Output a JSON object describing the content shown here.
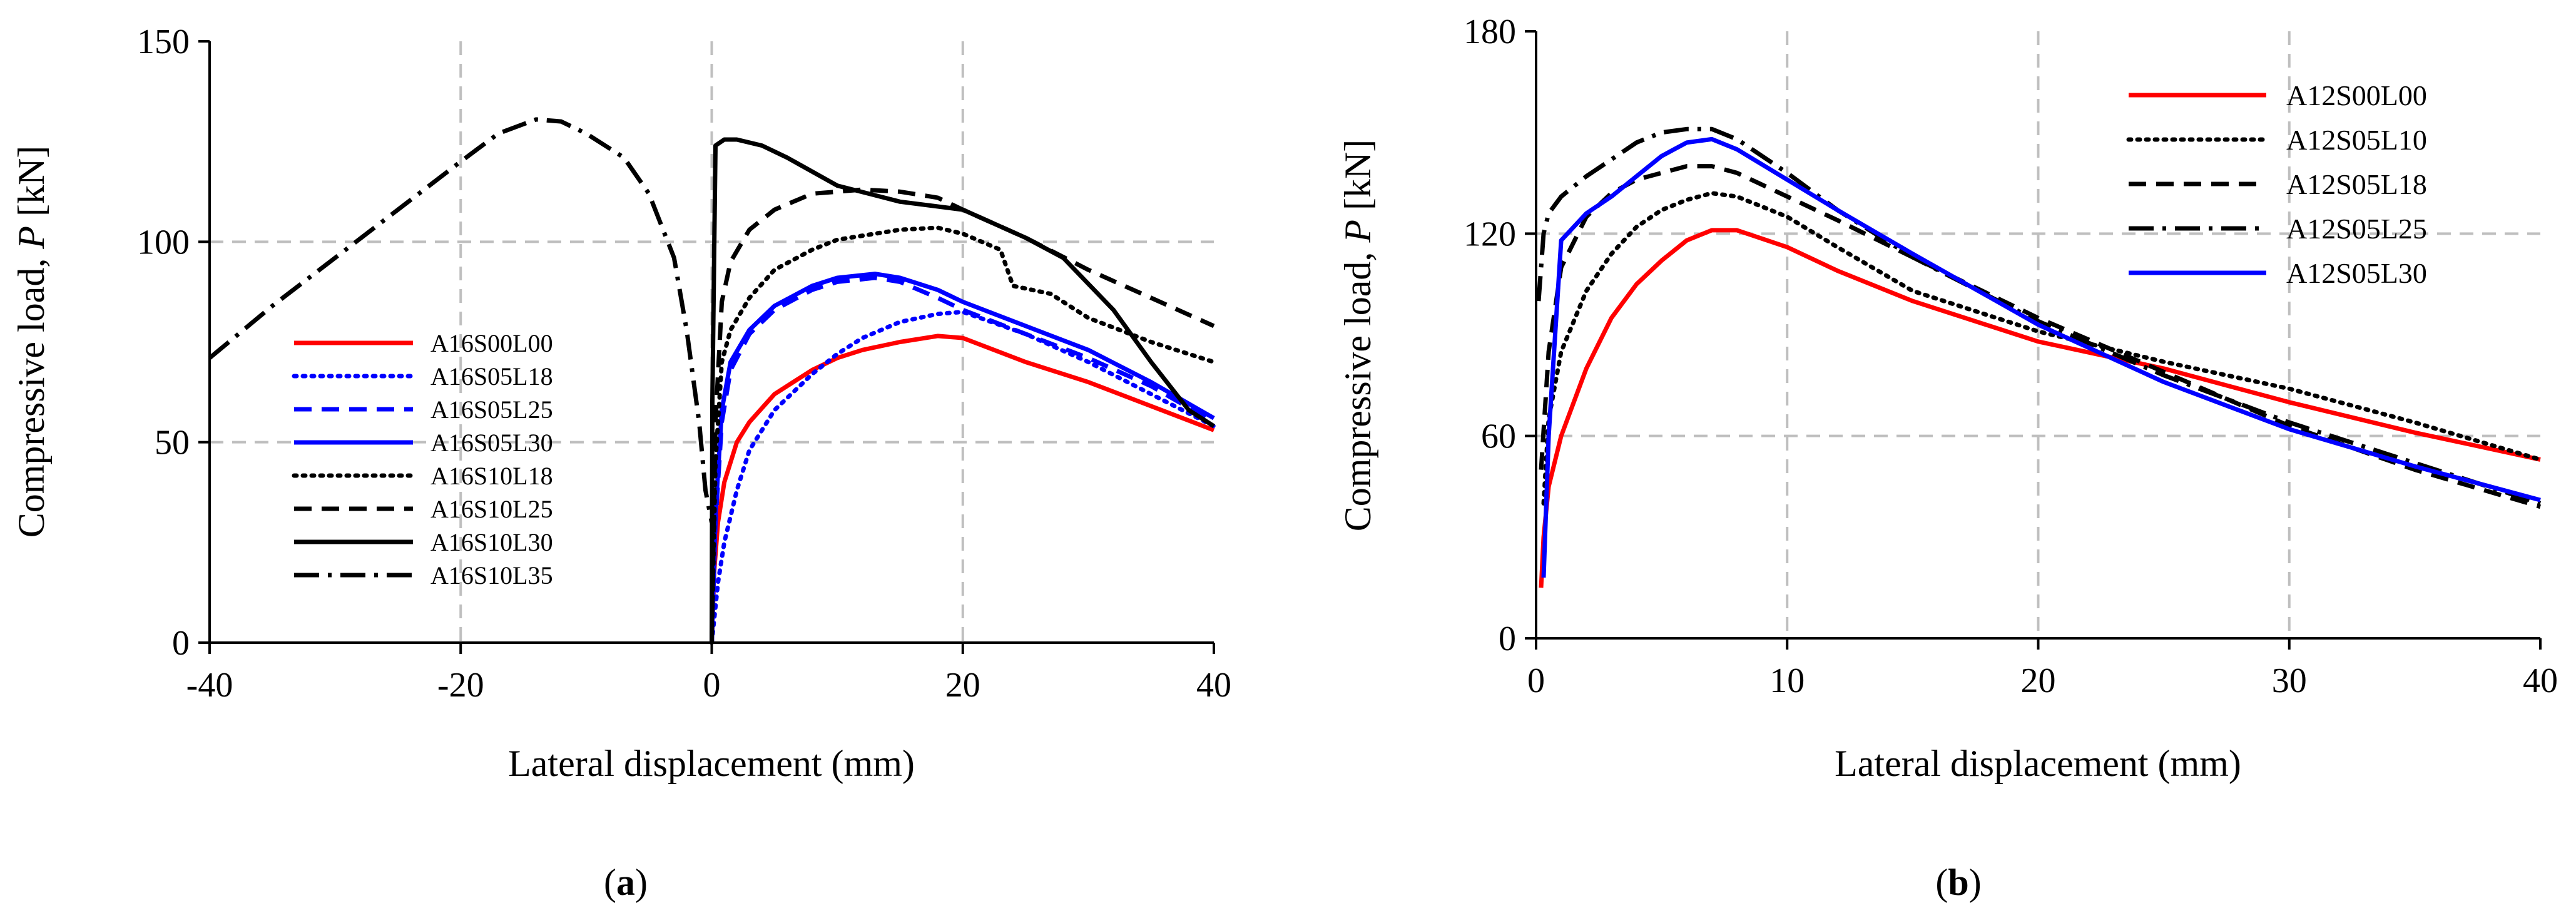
{
  "chart_data": [
    {
      "type": "line",
      "panel_label_prefix": "(",
      "panel_label_letter": "a",
      "panel_label_suffix": ")",
      "xlabel": "Lateral displacement (mm)",
      "ylabel_prefix": "Compressive load, ",
      "ylabel_symbol": "P",
      "ylabel_suffix": " [kN]",
      "xlim": [
        -40,
        40
      ],
      "ylim": [
        0,
        150
      ],
      "xticks": [
        -40,
        -20,
        0,
        20,
        40
      ],
      "yticks": [
        0,
        50,
        100,
        150
      ],
      "xtick_labels": [
        "-40",
        "-20",
        "0",
        "20",
        "40"
      ],
      "ytick_labels": [
        "0",
        "50",
        "100",
        "150"
      ],
      "grid": true,
      "legend_position": "left-lower",
      "series": [
        {
          "name": "A16S00L00",
          "color": "#ff0000",
          "dash": "solid",
          "x": [
            0,
            0.2,
            0.5,
            1,
            2,
            3,
            5,
            8,
            10,
            12,
            15,
            18,
            20,
            25,
            30,
            35,
            40
          ],
          "y": [
            0,
            18,
            30,
            40,
            50,
            55,
            62,
            68,
            71,
            73,
            75,
            76.5,
            76,
            70,
            65,
            59,
            53
          ]
        },
        {
          "name": "A16S05L18",
          "color": "#0000ff",
          "dash": "dotted",
          "x": [
            0,
            0.5,
            1,
            2,
            3,
            5,
            8,
            10,
            12,
            15,
            18,
            20,
            25,
            30,
            35,
            40
          ],
          "y": [
            0,
            15,
            25,
            38,
            48,
            58,
            67,
            72,
            76,
            80,
            82,
            82.5,
            77,
            70,
            62,
            54
          ]
        },
        {
          "name": "A16S05L25",
          "color": "#0000ff",
          "dash": "dashed",
          "x": [
            0,
            0.3,
            0.8,
            1.5,
            3,
            5,
            8,
            10,
            13,
            15,
            18,
            20,
            25,
            30,
            35,
            40
          ],
          "y": [
            0,
            30,
            55,
            68,
            77,
            83,
            88,
            90,
            91,
            90,
            86,
            83,
            77,
            71,
            64,
            55
          ]
        },
        {
          "name": "A16S05L30",
          "color": "#0000ff",
          "dash": "solid",
          "x": [
            0,
            0.3,
            0.8,
            1.5,
            3,
            5,
            8,
            10,
            13,
            15,
            18,
            20,
            25,
            30,
            35,
            40
          ],
          "y": [
            0,
            32,
            58,
            70,
            78,
            84,
            89,
            91,
            92,
            91,
            88,
            85,
            79,
            73,
            65,
            56
          ]
        },
        {
          "name": "A16S10L18",
          "color": "#000000",
          "dash": "dotted",
          "x": [
            0,
            0.3,
            0.8,
            1.5,
            3,
            5,
            8,
            10,
            15,
            18,
            20,
            23,
            24,
            27,
            30,
            35,
            40
          ],
          "y": [
            0,
            45,
            70,
            78,
            86,
            93,
            98,
            100.5,
            103,
            103.5,
            102,
            98,
            89,
            87,
            81,
            75,
            70
          ]
        },
        {
          "name": "A16S10L25",
          "color": "#000000",
          "dash": "dashed",
          "x": [
            0,
            0.3,
            0.8,
            1.5,
            3,
            5,
            8,
            10,
            12,
            15,
            18,
            20,
            25,
            30,
            35,
            40
          ],
          "y": [
            0,
            55,
            85,
            95,
            103,
            108,
            112,
            112.5,
            113,
            112.5,
            111,
            108,
            101,
            93,
            86,
            79
          ]
        },
        {
          "name": "A16S10L30",
          "color": "#000000",
          "dash": "solid",
          "x": [
            0,
            0.05,
            0.3,
            1,
            2,
            4,
            6,
            10,
            15,
            20,
            25,
            28,
            32,
            35,
            38,
            40
          ],
          "y": [
            0,
            60,
            124,
            125.5,
            125.5,
            124,
            121,
            114,
            110,
            108,
            101,
            96,
            83,
            70,
            58,
            54
          ]
        },
        {
          "name": "A16S10L35",
          "color": "#000000",
          "dash": "dashdot",
          "x": [
            -40,
            -35,
            -30,
            -25,
            -20,
            -17,
            -14,
            -12,
            -10,
            -7,
            -5,
            -3,
            -2,
            -1,
            -0.5,
            0
          ],
          "y": [
            71,
            84,
            96,
            108,
            120,
            127,
            130.5,
            130,
            127,
            121,
            112,
            96,
            78,
            55,
            38,
            30
          ]
        }
      ]
    },
    {
      "type": "line",
      "panel_label_prefix": "(",
      "panel_label_letter": "b",
      "panel_label_suffix": ")",
      "xlabel": "Lateral displacement (mm)",
      "ylabel_prefix": "Compressive load, ",
      "ylabel_symbol": "P",
      "ylabel_suffix": " [kN]",
      "xlim": [
        0,
        40
      ],
      "ylim": [
        0,
        180
      ],
      "xticks": [
        0,
        10,
        20,
        30,
        40
      ],
      "yticks": [
        0,
        60,
        120,
        180
      ],
      "xtick_labels": [
        "0",
        "10",
        "20",
        "30",
        "40"
      ],
      "ytick_labels": [
        "0",
        "60",
        "120",
        "180"
      ],
      "grid": true,
      "legend_position": "top-right",
      "series": [
        {
          "name": "A12S00L00",
          "color": "#ff0000",
          "dash": "solid",
          "x": [
            0.2,
            0.3,
            0.5,
            1,
            2,
            3,
            4,
            5,
            6,
            7,
            8,
            10,
            12,
            15,
            20,
            25,
            30,
            35,
            40
          ],
          "y": [
            15,
            30,
            45,
            60,
            80,
            95,
            105,
            112,
            118,
            121,
            121,
            116,
            109,
            100,
            88,
            80,
            70,
            61,
            53
          ]
        },
        {
          "name": "A12S05L10",
          "color": "#000000",
          "dash": "dotted",
          "x": [
            0.3,
            0.5,
            1,
            2,
            3,
            4,
            5,
            6,
            7,
            8,
            10,
            12,
            15,
            20,
            25,
            30,
            35,
            40
          ],
          "y": [
            40,
            65,
            85,
            103,
            114,
            122,
            127,
            130,
            132,
            131,
            125,
            116,
            103,
            91,
            82,
            74,
            64,
            53
          ]
        },
        {
          "name": "A12S05L18",
          "color": "#000000",
          "dash": "dashed",
          "x": [
            0.2,
            0.5,
            1,
            2,
            3,
            4,
            5,
            6,
            7,
            8,
            10,
            12,
            15,
            20,
            25,
            30,
            35,
            40
          ],
          "y": [
            50,
            85,
            110,
            125,
            132,
            136,
            138,
            140,
            140,
            138,
            131,
            124,
            113,
            95,
            79,
            63,
            50,
            39
          ]
        },
        {
          "name": "A12S05L25",
          "color": "#000000",
          "dash": "dashdot",
          "x": [
            0.1,
            0.3,
            0.5,
            1,
            2,
            3,
            4,
            5,
            6,
            7,
            8,
            10,
            12,
            15,
            20,
            25,
            30,
            35,
            40
          ],
          "y": [
            100,
            120,
            126,
            131,
            137,
            142,
            147,
            150,
            151,
            151,
            148,
            138,
            127,
            113,
            94,
            78,
            64,
            52,
            40
          ]
        },
        {
          "name": "A12S05L30",
          "color": "#0000ff",
          "dash": "solid",
          "x": [
            0.3,
            0.5,
            1,
            2,
            3,
            4,
            5,
            6,
            7,
            8,
            10,
            12,
            15,
            20,
            25,
            30,
            35,
            40
          ],
          "y": [
            18,
            60,
            118,
            126,
            131,
            137,
            143,
            147,
            148,
            145,
            136,
            127,
            114,
            93,
            76,
            62,
            51,
            41
          ]
        }
      ]
    }
  ]
}
